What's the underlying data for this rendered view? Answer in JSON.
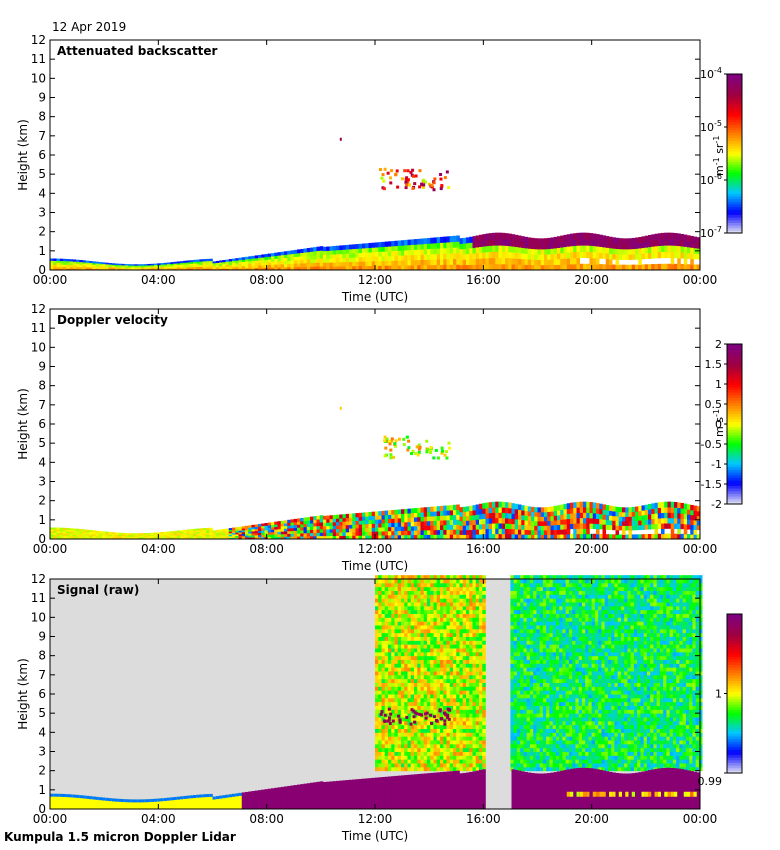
{
  "date_label": "12 Apr 2019",
  "footer": "Kumpula 1.5 micron Doppler Lidar",
  "chart_data": [
    {
      "type": "heatmap",
      "title": "Attenuated backscatter",
      "xlabel": "Time (UTC)",
      "ylabel": "Height (km)",
      "xlim": [
        0,
        24
      ],
      "ylim": [
        0,
        12
      ],
      "x_ticks": [
        "00:00",
        "04:00",
        "08:00",
        "12:00",
        "16:00",
        "20:00",
        "00:00"
      ],
      "y_ticks": [
        "0",
        "1",
        "2",
        "3",
        "4",
        "5",
        "6",
        "7",
        "8",
        "9",
        "10",
        "11",
        "12"
      ],
      "colorbar": {
        "scale": "log",
        "ticks": [
          "10-7",
          "10-6",
          "10-5",
          "10-4"
        ],
        "ticks_base": "10",
        "ticks_exp": [
          "-7",
          "-6",
          "-5",
          "-4"
        ],
        "unit": "m-1 sr-1"
      },
      "background": "#ffffff",
      "features": [
        {
          "name": "boundary layer",
          "t_start": 0,
          "t_end": 24,
          "top_km": [
            0.6,
            0.5,
            0.4,
            0.45,
            0.9,
            1.2,
            1.6,
            1.8,
            2.0
          ]
        },
        {
          "name": "mid-level cloud",
          "t_start": 12.1,
          "t_end": 14.7,
          "height_km": [
            4.2,
            5.5
          ]
        },
        {
          "name": "cloud at ~1.5 km",
          "t_start": 15.5,
          "t_end": 24,
          "height_km": [
            1.2,
            1.9
          ]
        }
      ]
    },
    {
      "type": "heatmap",
      "title": "Doppler velocity",
      "xlabel": "Time (UTC)",
      "ylabel": "Height (km)",
      "xlim": [
        0,
        24
      ],
      "ylim": [
        0,
        12
      ],
      "x_ticks": [
        "00:00",
        "04:00",
        "08:00",
        "12:00",
        "16:00",
        "20:00",
        "00:00"
      ],
      "y_ticks": [
        "0",
        "1",
        "2",
        "3",
        "4",
        "5",
        "6",
        "7",
        "8",
        "9",
        "10",
        "11",
        "12"
      ],
      "colorbar": {
        "scale": "linear",
        "ticks": [
          "-2",
          "-1.5",
          "-1",
          "-0.5",
          "0",
          "0.5",
          "1",
          "1.5",
          "2"
        ],
        "range": [
          -2,
          2
        ],
        "unit": "m s-1"
      },
      "background": "#ffffff"
    },
    {
      "type": "heatmap",
      "title": "Signal (raw)",
      "xlabel": "Time (UTC)",
      "ylabel": "Height (km)",
      "xlim": [
        0,
        24
      ],
      "ylim": [
        0,
        12
      ],
      "x_ticks": [
        "00:00",
        "04:00",
        "08:00",
        "12:00",
        "16:00",
        "20:00",
        "00:00"
      ],
      "y_ticks": [
        "0",
        "1",
        "2",
        "3",
        "4",
        "5",
        "6",
        "7",
        "8",
        "9",
        "10",
        "11",
        "12"
      ],
      "colorbar": {
        "scale": "linear",
        "ticks": [
          "0.99",
          "1"
        ],
        "range": [
          0.99,
          1.01
        ]
      },
      "background": "#dcdcdc",
      "gaps": [
        {
          "t_start": 16.0,
          "t_end": 17.0
        }
      ]
    }
  ],
  "colors": {
    "frame": "#000000",
    "missing": "#dcdcdc",
    "colormap": [
      "#d9d9f2",
      "#0000ff",
      "#00c8ff",
      "#00ff00",
      "#ffff00",
      "#ff8000",
      "#ff0000",
      "#a00040",
      "#800080"
    ]
  }
}
